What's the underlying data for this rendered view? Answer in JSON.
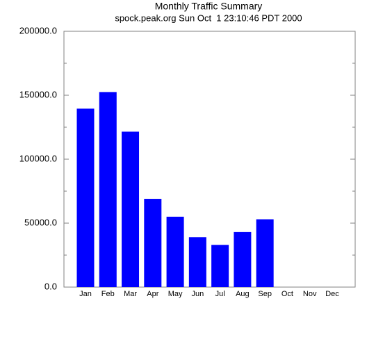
{
  "chart_data": {
    "type": "bar",
    "title": "Monthly Traffic Summary",
    "subtitle": "spock.peak.org Sun Oct  1 23:10:46 PDT 2000",
    "categories": [
      "Jan",
      "Feb",
      "Mar",
      "Apr",
      "May",
      "Jun",
      "Jul",
      "Aug",
      "Sep",
      "Oct",
      "Nov",
      "Dec"
    ],
    "values": [
      139500,
      152500,
      121500,
      69000,
      55000,
      39000,
      33000,
      43000,
      53000,
      null,
      null,
      null
    ],
    "color": "#0000ff",
    "ylim": [
      0,
      200000
    ],
    "yticks": [
      {
        "value": 0,
        "label": "0.0"
      },
      {
        "value": 50000,
        "label": "50000.0"
      },
      {
        "value": 100000,
        "label": "100000.0"
      },
      {
        "value": 150000,
        "label": "150000.0"
      },
      {
        "value": 200000,
        "label": "200000.0"
      }
    ],
    "minor_yticks": [
      25000,
      75000,
      125000,
      175000
    ]
  }
}
